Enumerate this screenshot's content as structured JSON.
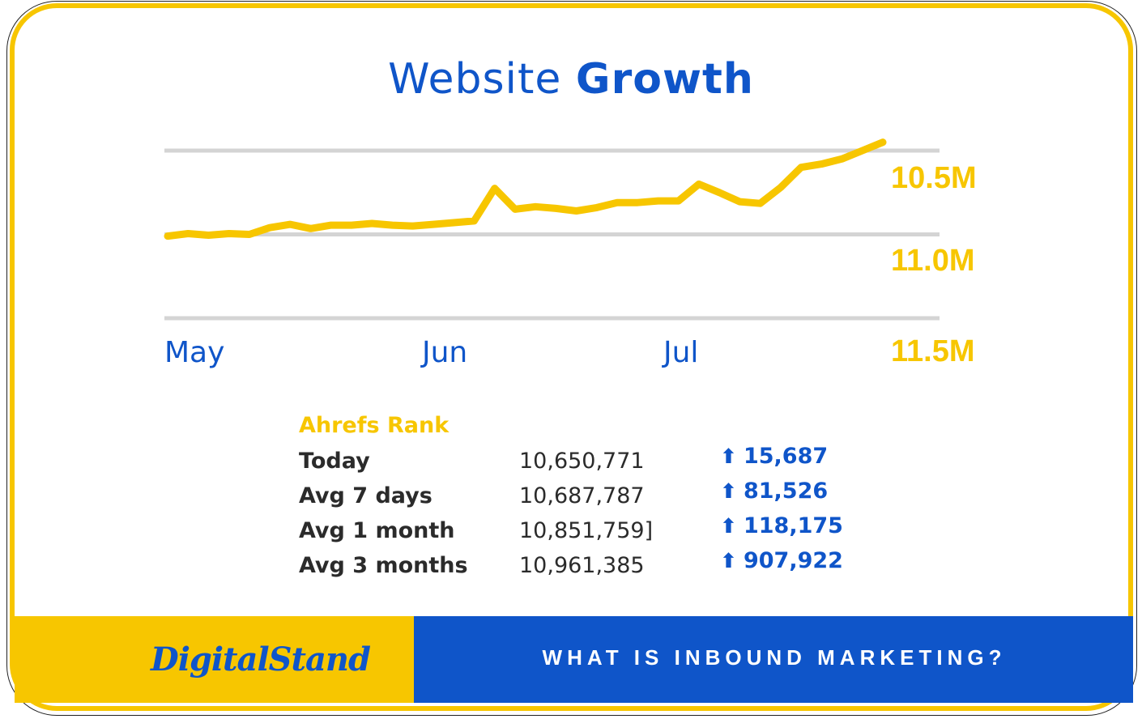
{
  "title": {
    "light": "Website",
    "bold": "Growth"
  },
  "chart_data": {
    "type": "line",
    "x_labels": [
      "May",
      "Jun",
      "Jul"
    ],
    "y_labels": [
      "10.5M",
      "11.0M",
      "11.5M"
    ],
    "y_reversed": true,
    "ylim": [
      10500000,
      11500000
    ],
    "grid": true,
    "series": [
      {
        "values": [
          11010000,
          10995000,
          11005000,
          10995000,
          11000000,
          10960000,
          10940000,
          10965000,
          10945000,
          10945000,
          10935000,
          10945000,
          10950000,
          10940000,
          10930000,
          10920000,
          10725000,
          10850000,
          10835000,
          10845000,
          10860000,
          10840000,
          10810000,
          10810000,
          10800000,
          10800000,
          10700000,
          10750000,
          10805000,
          10815000,
          10720000,
          10600000,
          10580000,
          10550000,
          10500000,
          10450000
        ]
      }
    ],
    "color": "#f7c600"
  },
  "stats": {
    "heading": "Ahrefs Rank",
    "rows": [
      {
        "label": "Today",
        "value": "10,650,771",
        "change": "15,687"
      },
      {
        "label": "Avg 7 days",
        "value": "10,687,787",
        "change": "81,526"
      },
      {
        "label": "Avg 1 month",
        "value": "10,851,759]",
        "change": "118,175"
      },
      {
        "label": "Avg 3 months",
        "value": "10,961,385",
        "change": "907,922"
      }
    ],
    "arrow_icon": "arrow-up-icon"
  },
  "footer": {
    "logo_text": "DigitalStand",
    "cta": "WHAT IS INBOUND MARKETING?"
  },
  "colors": {
    "blue": "#0f55c9",
    "yellow": "#f7c600",
    "grid": "#d4d4d4"
  }
}
